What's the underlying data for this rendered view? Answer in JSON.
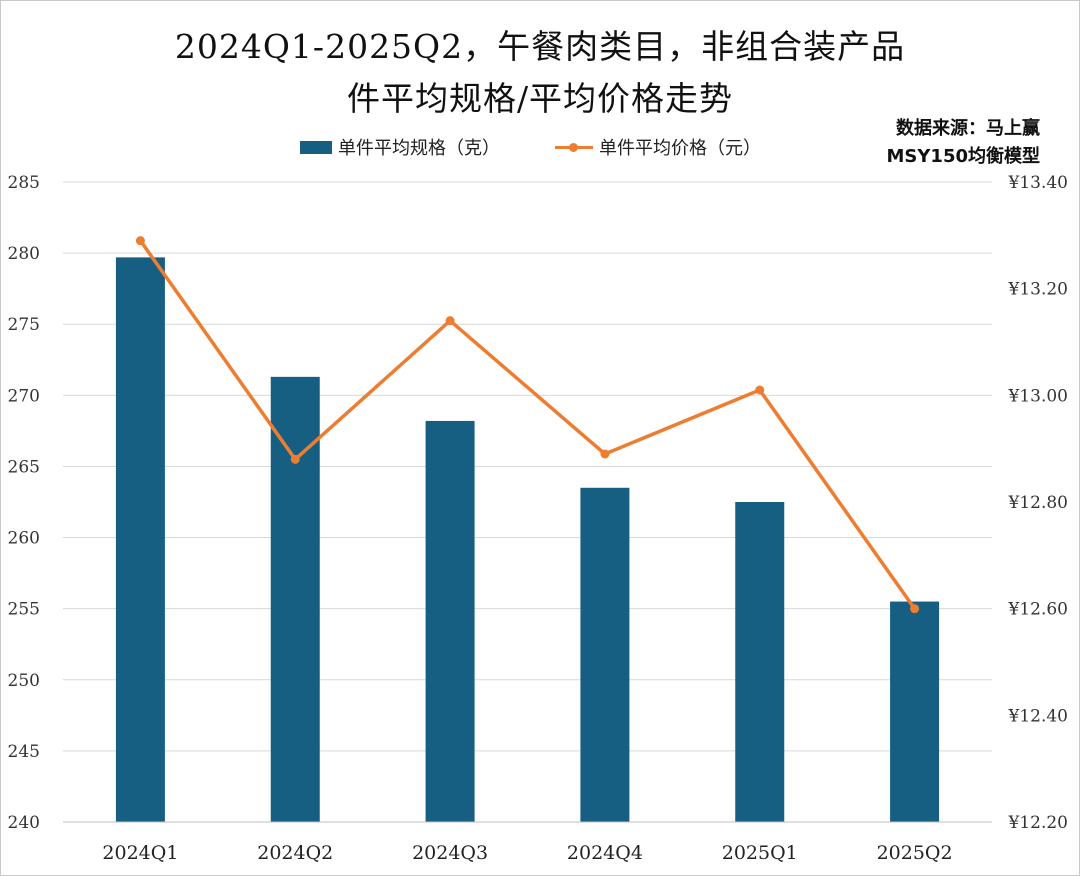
{
  "chart_data": {
    "type": "bar+line",
    "title_line1": "2024Q1-2025Q2，午餐肉类目，非组合装产品",
    "title_line2": "件平均规格/平均价格走势",
    "source_line1": "数据来源：马上赢",
    "source_line2": "MSY150均衡模型",
    "categories": [
      "2024Q1",
      "2024Q2",
      "2024Q3",
      "2024Q4",
      "2025Q1",
      "2025Q2"
    ],
    "series": [
      {
        "name": "单件平均规格（克）",
        "type": "bar",
        "axis": "left",
        "color": "#175f82",
        "values": [
          279.7,
          271.3,
          268.2,
          263.5,
          262.5,
          255.5
        ]
      },
      {
        "name": "单件平均价格（元）",
        "type": "line",
        "axis": "right",
        "color": "#ed7d31",
        "values": [
          13.29,
          12.88,
          13.14,
          12.89,
          13.01,
          12.6
        ]
      }
    ],
    "left_axis": {
      "min": 240,
      "max": 285,
      "step": 5,
      "ticks": [
        "240",
        "245",
        "250",
        "255",
        "260",
        "265",
        "270",
        "275",
        "280",
        "285"
      ]
    },
    "right_axis": {
      "min": 12.2,
      "max": 13.4,
      "step": 0.2,
      "ticks": [
        "¥12.20",
        "¥12.40",
        "¥12.60",
        "¥12.80",
        "¥13.00",
        "¥13.20",
        "¥13.40"
      ]
    },
    "gridlines": true,
    "legend_position": "top-center"
  }
}
